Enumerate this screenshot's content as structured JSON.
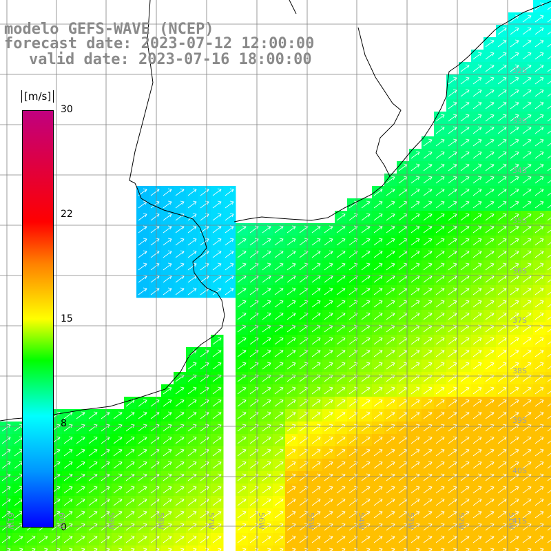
{
  "title": {
    "line1": "modelo GEFS-WAVE (NCEP)",
    "line2": "forecast date: 2023-07-12 12:00:00",
    "line3": "valid date: 2023-07-16 18:00:00"
  },
  "colorbar": {
    "unit": "[m/s]",
    "ticks": [
      "30",
      "22",
      "15",
      "8",
      "0"
    ],
    "stops": [
      {
        "value": 0,
        "color": "#0000ff"
      },
      {
        "value": 4,
        "color": "#0096ff"
      },
      {
        "value": 8,
        "color": "#00ffff"
      },
      {
        "value": 12,
        "color": "#00ff00"
      },
      {
        "value": 15,
        "color": "#ffff00"
      },
      {
        "value": 19,
        "color": "#ff8000"
      },
      {
        "value": 22,
        "color": "#ff0000"
      },
      {
        "value": 30,
        "color": "#c0007f"
      }
    ]
  },
  "map": {
    "land_color": "#ffffff",
    "grid_color": "#808080",
    "coast_color": "#000000",
    "arrow_color": "#ffffff",
    "wind_direction": "toward northeast",
    "lat_labels": [
      "32S",
      "33S",
      "34S",
      "35S",
      "36S",
      "37S",
      "38S",
      "39S",
      "40S",
      "41S"
    ],
    "lon_labels": [
      "61W",
      "60W",
      "59W",
      "58W",
      "57W",
      "56W",
      "55W",
      "54W",
      "53W",
      "52W",
      "51W"
    ]
  }
}
